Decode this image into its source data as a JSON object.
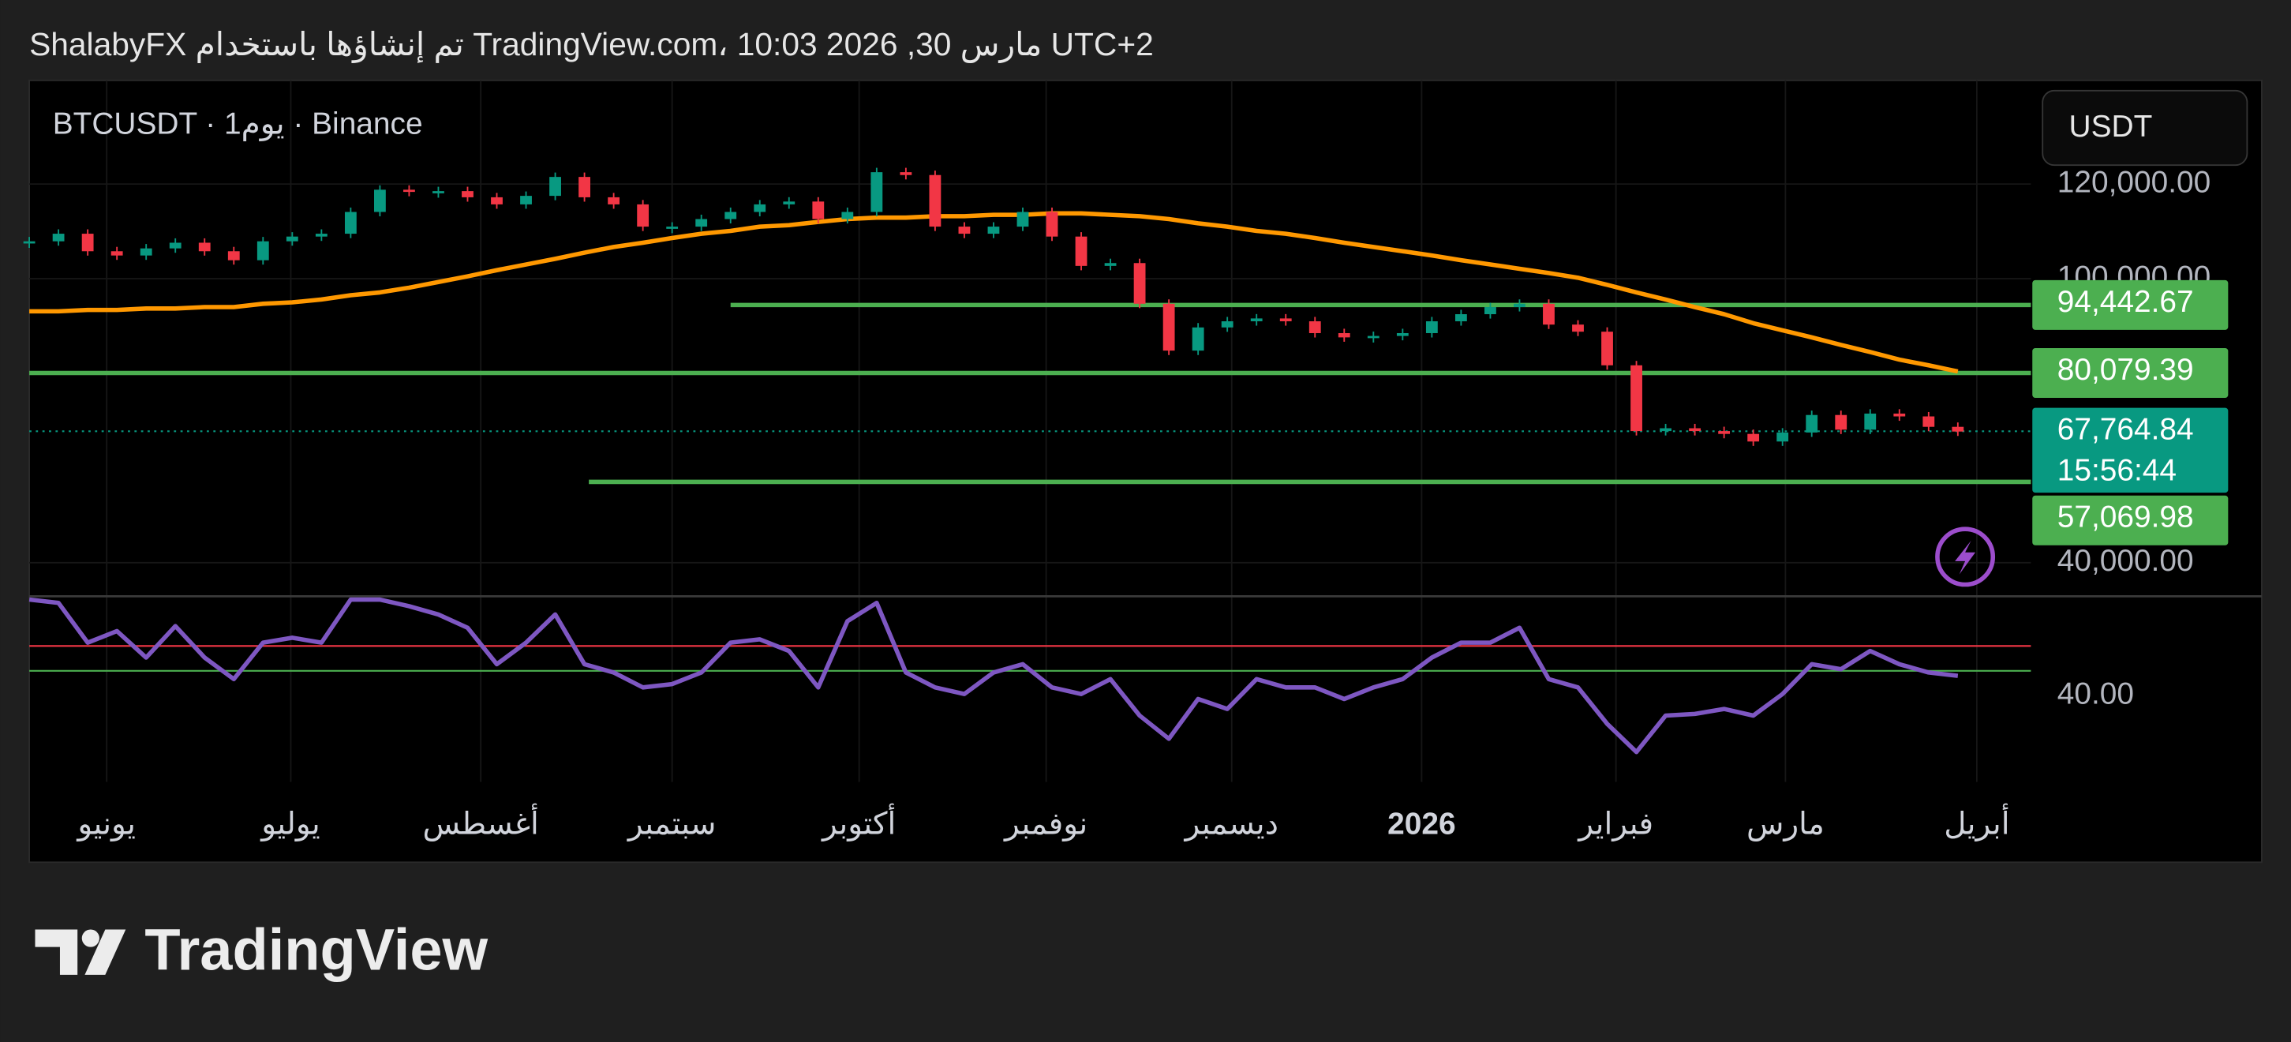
{
  "header": "ShalabyFX تم إنشاؤها باستخدام TradingView.com، 10:03 2026 ,30 مارس UTC+2",
  "logo": "TradingView",
  "chart_data": {
    "type": "candlestick",
    "symbol": "BTCUSDT · 1يوم · Binance",
    "currency": "USDT",
    "ylim": [
      32900,
      141900
    ],
    "yticks": [
      {
        "value": 120000,
        "label": "120,000.00"
      },
      {
        "value": 100000,
        "label": "100,000.00"
      },
      {
        "value": 40000,
        "label": "40,000.00"
      }
    ],
    "x_labels": [
      "يونيو",
      "يوليو",
      "أغسطس",
      "سبتمبر",
      "أكتوبر",
      "نوفمبر",
      "ديسمبر",
      "2026",
      "فبراير",
      "مارس",
      "أبريل"
    ],
    "series": [
      {
        "type": "candlestick",
        "color_up": "#089981",
        "color_down": "#f23645",
        "values": [
          107900,
          109500,
          105800,
          104900,
          106400,
          107600,
          105800,
          103900,
          107900,
          108900,
          109500,
          114100,
          118800,
          118500,
          118500,
          117200,
          115700,
          117500,
          121500,
          117200,
          115700,
          111000,
          111000,
          112600,
          114100,
          115700,
          116300,
          112600,
          114100,
          122500,
          121900,
          111000,
          109500,
          111000,
          114100,
          108900,
          102700,
          103300,
          94700,
          84800,
          89700,
          91000,
          91600,
          91000,
          88500,
          87600,
          87900,
          88500,
          91000,
          92500,
          94000,
          94700,
          90300,
          88800,
          81700,
          67800,
          68400,
          67800,
          67200,
          65600,
          67500,
          71200,
          68100,
          71500,
          70900,
          68700,
          67700
        ]
      },
      {
        "type": "line",
        "color": "#ff9800",
        "values": [
          93100,
          93100,
          93400,
          93400,
          93700,
          93700,
          94000,
          94000,
          94700,
          95000,
          95600,
          96500,
          97100,
          98100,
          99300,
          100500,
          101800,
          103000,
          104200,
          105500,
          106700,
          107600,
          108600,
          109500,
          110100,
          111000,
          111300,
          112000,
          112600,
          112900,
          112900,
          113200,
          113200,
          113500,
          113500,
          113800,
          113800,
          113500,
          113200,
          112600,
          111700,
          111000,
          110100,
          109500,
          108600,
          107600,
          106700,
          105800,
          104900,
          103900,
          103000,
          102100,
          101200,
          100200,
          98700,
          97100,
          95600,
          94000,
          92500,
          90600,
          89100,
          87600,
          86000,
          84500,
          82900,
          81700,
          80400
        ]
      }
    ],
    "hlines": [
      {
        "value": 94442.67,
        "label": "94,442.67",
        "color": "#4caf50"
      },
      {
        "value": 80079.39,
        "label": "80,079.39",
        "color": "#4caf50"
      },
      {
        "value": 57069.98,
        "label": "57,069.98",
        "color": "#4caf50"
      }
    ],
    "last_price": {
      "value": 67764.84,
      "label": "67,764.84",
      "countdown": "15:56:44",
      "color": "#089981"
    },
    "rsi": {
      "type": "line",
      "color": "#7e57c2",
      "ylim": [
        -12,
        100
      ],
      "yticks": [
        {
          "value": 40,
          "label": "40.00"
        }
      ],
      "levels": [
        {
          "value": 70,
          "color": "#f23645"
        },
        {
          "value": 55,
          "color": "#4caf50"
        }
      ],
      "values": [
        98,
        96,
        72,
        79,
        63,
        82,
        63,
        50,
        72,
        75,
        72,
        98,
        98,
        94,
        89,
        81,
        59,
        72,
        89,
        59,
        54,
        45,
        47,
        54,
        72,
        74,
        67,
        45,
        85,
        96,
        54,
        45,
        41,
        54,
        59,
        45,
        41,
        50,
        28,
        14,
        38,
        32,
        50,
        45,
        45,
        38,
        45,
        50,
        63,
        72,
        72,
        81,
        50,
        45,
        23,
        6,
        28,
        29,
        32,
        28,
        41,
        59,
        56,
        67,
        59,
        54,
        52
      ]
    }
  }
}
